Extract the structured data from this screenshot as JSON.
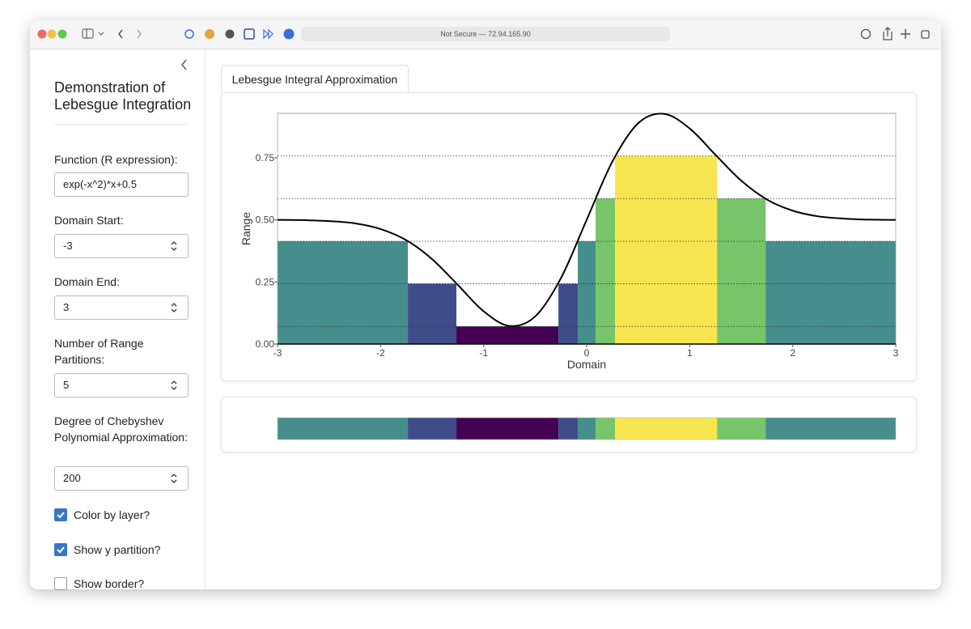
{
  "browser": {
    "address": "Not Secure — 72.94.165.90"
  },
  "sidebar": {
    "title": "Demonstration of Lebesgue Integration",
    "inputs": [
      {
        "label": "Function (R expression):",
        "value": "exp(-x^2)*x+0.5"
      },
      {
        "label": "Domain Start:",
        "value": "-3"
      },
      {
        "label": "Domain End:",
        "value": "3"
      },
      {
        "label": "Number of Range Partitions:",
        "value": "5"
      },
      {
        "label": "Degree of Chebyshev Polynomial Approximation:",
        "value": "200"
      }
    ],
    "checkboxes": [
      {
        "label": "Color by layer?",
        "checked": true
      },
      {
        "label": "Show y partition?",
        "checked": true
      },
      {
        "label": "Show border?",
        "checked": false
      }
    ]
  },
  "tabs": [
    "Lebesgue Integral Approximation"
  ],
  "chart_data": {
    "type": "bar",
    "xlabel": "Domain",
    "ylabel": "Range",
    "xlim": [
      -3,
      3
    ],
    "ylim": [
      0,
      0.929
    ],
    "xticks": [
      -3,
      -2,
      -1,
      0,
      1,
      2,
      3
    ],
    "yticks": [
      {
        "value": 0,
        "label": "0.00"
      },
      {
        "value": 0.25,
        "label": "0.25"
      },
      {
        "value": 0.5,
        "label": "0.50"
      },
      {
        "value": 0.75,
        "label": "0.75"
      }
    ],
    "edges": [
      -3,
      -1.735,
      -1.264,
      -0.274,
      -0.086,
      0.087,
      0.276,
      1.266,
      1.737,
      3
    ],
    "values": [
      0.414,
      0.243,
      0.071,
      0.243,
      0.414,
      0.586,
      0.757,
      0.586,
      0.414
    ],
    "colors": [
      "#468e8b",
      "#3e4c89",
      "#440154",
      "#3e4c89",
      "#468e8b",
      "#77c46a",
      "#f7e54f",
      "#77c46a",
      "#468e8b"
    ],
    "partitions": [
      0.071,
      0.243,
      0.414,
      0.586,
      0.757,
      0.929
    ],
    "curve": {
      "x": [
        -3,
        -2.75,
        -2.5,
        -2.25,
        -2,
        -1.75,
        -1.5,
        -1.25,
        -1,
        -0.75,
        -0.5,
        -0.25,
        0,
        0.25,
        0.5,
        0.75,
        1,
        1.25,
        1.5,
        1.75,
        2,
        2.25,
        2.5,
        2.75,
        3
      ],
      "y": [
        0.5,
        0.499,
        0.495,
        0.486,
        0.463,
        0.418,
        0.342,
        0.238,
        0.132,
        0.073,
        0.111,
        0.265,
        0.5,
        0.735,
        0.889,
        0.927,
        0.868,
        0.762,
        0.658,
        0.582,
        0.537,
        0.514,
        0.505,
        0.501,
        0.5
      ],
      "color": "#000000"
    }
  }
}
